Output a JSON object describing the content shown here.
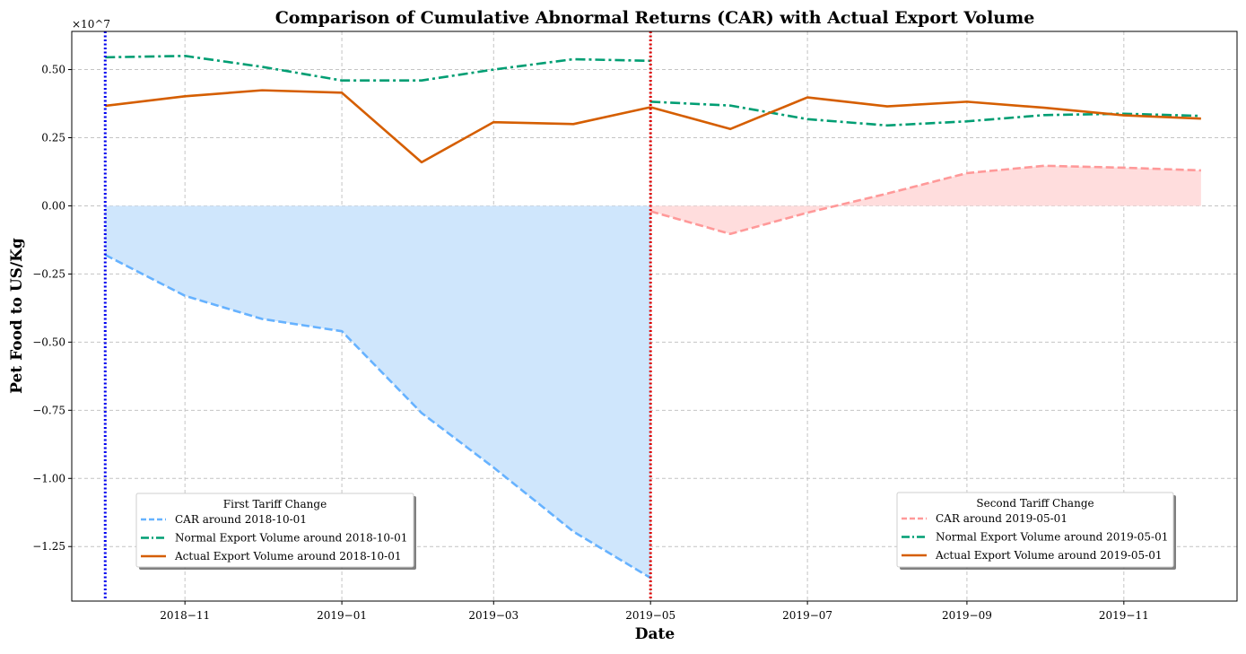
{
  "chart_data": {
    "type": "line",
    "title": "Comparison of Cumulative Abnormal Returns (CAR) with Actual Export Volume",
    "xlabel": "Date",
    "ylabel": "Pet Food to US/Kg",
    "y_scale_label": "×10^7",
    "y_multiplier": 10000000,
    "ylim": [
      -1.45,
      0.64
    ],
    "xlim": [
      "2018-09-18",
      "2019-12-15"
    ],
    "grid": true,
    "y_ticks": [
      {
        "value": 0.5,
        "label": "0.50"
      },
      {
        "value": 0.25,
        "label": "0.25"
      },
      {
        "value": 0.0,
        "label": "0.00"
      },
      {
        "value": -0.25,
        "label": "−0.25"
      },
      {
        "value": -0.5,
        "label": "−0.50"
      },
      {
        "value": -0.75,
        "label": "−0.75"
      },
      {
        "value": -1.0,
        "label": "−1.00"
      },
      {
        "value": -1.25,
        "label": "−1.25"
      }
    ],
    "x_ticks": [
      {
        "date": "2018-11-01",
        "label": "2018−11"
      },
      {
        "date": "2019-01-01",
        "label": "2019−01"
      },
      {
        "date": "2019-03-01",
        "label": "2019−03"
      },
      {
        "date": "2019-05-01",
        "label": "2019−05"
      },
      {
        "date": "2019-07-01",
        "label": "2019−07"
      },
      {
        "date": "2019-09-01",
        "label": "2019−09"
      },
      {
        "date": "2019-11-01",
        "label": "2019−11"
      }
    ],
    "event_lines": [
      {
        "name": "First Tariff Change",
        "date": "2018-10-01",
        "color": "#0000ee"
      },
      {
        "name": "Second Tariff Change",
        "date": "2019-05-01",
        "color": "#dd0000"
      }
    ],
    "series": [
      {
        "name": "CAR around 2018-10-01",
        "style": "dashed",
        "color": "#66b2ff",
        "fill_color": "#cfe6fc",
        "fill_to_zero": true,
        "x": [
          "2018-10-01",
          "2018-11-01",
          "2018-12-01",
          "2019-01-01",
          "2019-02-01",
          "2019-03-01",
          "2019-04-01",
          "2019-05-01"
        ],
        "values": [
          -0.18,
          -0.33,
          -0.415,
          -0.46,
          -0.76,
          -0.96,
          -1.195,
          -1.365
        ]
      },
      {
        "name": "Normal Export Volume around 2018-10-01",
        "style": "dashdot",
        "color": "#009e73",
        "x": [
          "2018-10-01",
          "2018-11-01",
          "2018-12-01",
          "2019-01-01",
          "2019-02-01",
          "2019-03-01",
          "2019-04-01",
          "2019-05-01"
        ],
        "values": [
          0.545,
          0.55,
          0.51,
          0.46,
          0.46,
          0.5,
          0.538,
          0.532
        ]
      },
      {
        "name": "Actual Export Volume around 2018-10-01",
        "style": "solid",
        "color": "#d55e00",
        "x": [
          "2018-10-01",
          "2018-11-01",
          "2018-12-01",
          "2019-01-01",
          "2019-02-01",
          "2019-03-01",
          "2019-04-01",
          "2019-05-01"
        ],
        "values": [
          0.367,
          0.402,
          0.424,
          0.415,
          0.16,
          0.307,
          0.3,
          0.362
        ]
      },
      {
        "name": "CAR around 2019-05-01",
        "style": "dashed",
        "color": "#ff9999",
        "fill_color": "#ffdddd",
        "fill_to_zero": true,
        "x": [
          "2019-05-01",
          "2019-06-01",
          "2019-07-01",
          "2019-08-01",
          "2019-09-01",
          "2019-10-01",
          "2019-11-01",
          "2019-12-01"
        ],
        "values": [
          -0.02,
          -0.103,
          -0.025,
          0.045,
          0.12,
          0.147,
          0.14,
          0.13
        ]
      },
      {
        "name": "Normal Export Volume around 2019-05-01",
        "style": "dashdot",
        "color": "#009e73",
        "x": [
          "2019-05-01",
          "2019-06-01",
          "2019-07-01",
          "2019-08-01",
          "2019-09-01",
          "2019-10-01",
          "2019-11-01",
          "2019-12-01"
        ],
        "values": [
          0.382,
          0.368,
          0.318,
          0.295,
          0.31,
          0.333,
          0.338,
          0.33
        ]
      },
      {
        "name": "Actual Export Volume around 2019-05-01",
        "style": "solid",
        "color": "#d55e00",
        "x": [
          "2019-05-01",
          "2019-06-01",
          "2019-07-01",
          "2019-08-01",
          "2019-09-01",
          "2019-10-01",
          "2019-11-01",
          "2019-12-01"
        ],
        "values": [
          0.362,
          0.282,
          0.398,
          0.365,
          0.382,
          0.36,
          0.332,
          0.32
        ]
      }
    ],
    "legends": [
      {
        "title": "First Tariff Change",
        "position": "lower-left",
        "entries": [
          {
            "label": "CAR around 2018-10-01",
            "color": "#66b2ff",
            "style": "dashed"
          },
          {
            "label": "Normal Export Volume around 2018-10-01",
            "color": "#009e73",
            "style": "dashdot"
          },
          {
            "label": "Actual Export Volume around 2018-10-01",
            "color": "#d55e00",
            "style": "solid"
          }
        ]
      },
      {
        "title": "Second Tariff Change",
        "position": "lower-right",
        "entries": [
          {
            "label": "CAR around 2019-05-01",
            "color": "#ff9999",
            "style": "dashed"
          },
          {
            "label": "Normal Export Volume around 2019-05-01",
            "color": "#009e73",
            "style": "dashdot"
          },
          {
            "label": "Actual Export Volume around 2019-05-01",
            "color": "#d55e00",
            "style": "solid"
          }
        ]
      }
    ]
  }
}
